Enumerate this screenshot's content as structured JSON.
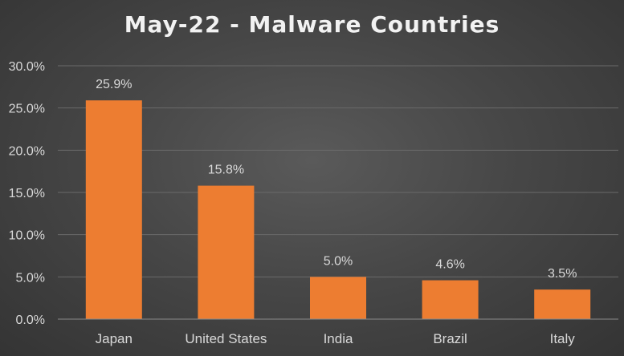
{
  "chart_data": {
    "type": "bar",
    "title": "May-22 - Malware Countries",
    "xlabel": "",
    "ylabel": "",
    "categories": [
      "Japan",
      "United States",
      "India",
      "Brazil",
      "Italy"
    ],
    "values": [
      25.9,
      15.8,
      5.0,
      4.6,
      3.5
    ],
    "data_labels": [
      "25.9%",
      "15.8%",
      "5.0%",
      "4.6%",
      "3.5%"
    ],
    "ylim": [
      0,
      30
    ],
    "yticks": [
      0,
      5,
      10,
      15,
      20,
      25,
      30
    ],
    "ytick_labels": [
      "0.0%",
      "5.0%",
      "10.0%",
      "15.0%",
      "20.0%",
      "25.0%",
      "30.0%"
    ],
    "grid": true,
    "legend": "none",
    "bar_color": "#ed7d31",
    "background_color": "#404040"
  }
}
